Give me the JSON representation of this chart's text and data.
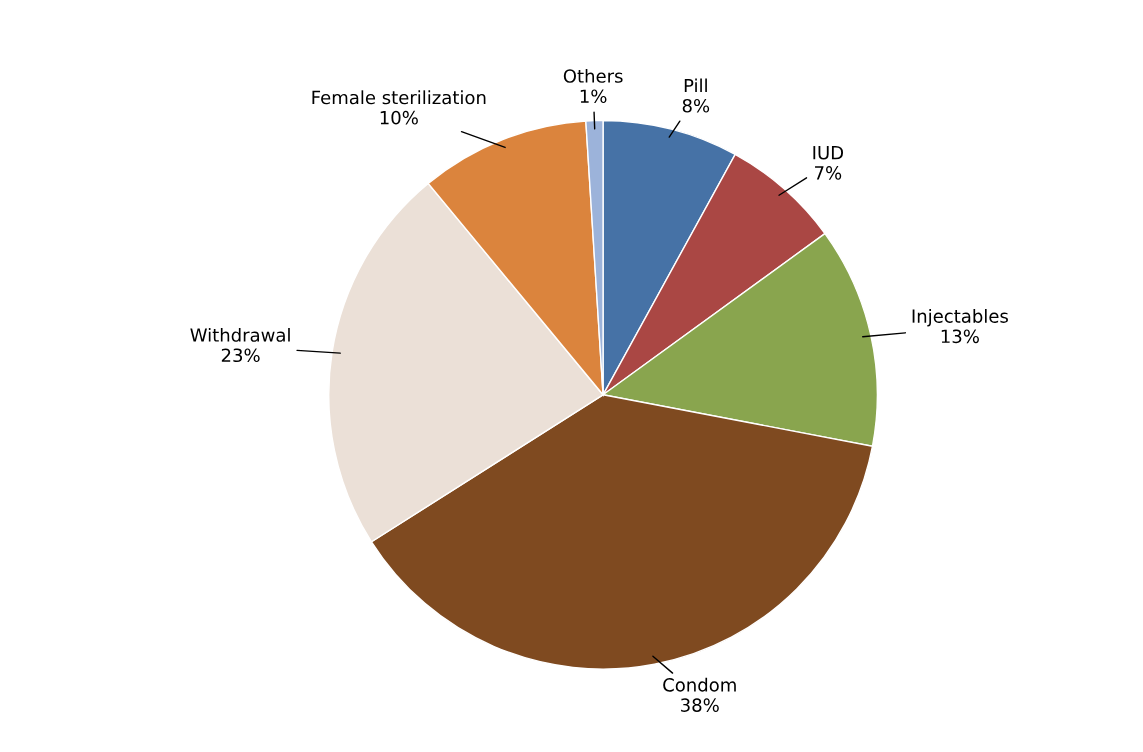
{
  "chart_data": {
    "type": "pie",
    "categories": [
      "Pill",
      "IUD",
      "Injectables",
      "Condom",
      "Withdrawal",
      "Female sterilization",
      "Others"
    ],
    "values": [
      8,
      7,
      13,
      38,
      23,
      10,
      1
    ],
    "colors": [
      "#4672a6",
      "#aa4744",
      "#89a54e",
      "#7f4a20",
      "#ebe0d7",
      "#db843d",
      "#9cb3da"
    ],
    "value_labels": [
      "8%",
      "7%",
      "13%",
      "38%",
      "23%",
      "10%",
      "1%"
    ]
  }
}
